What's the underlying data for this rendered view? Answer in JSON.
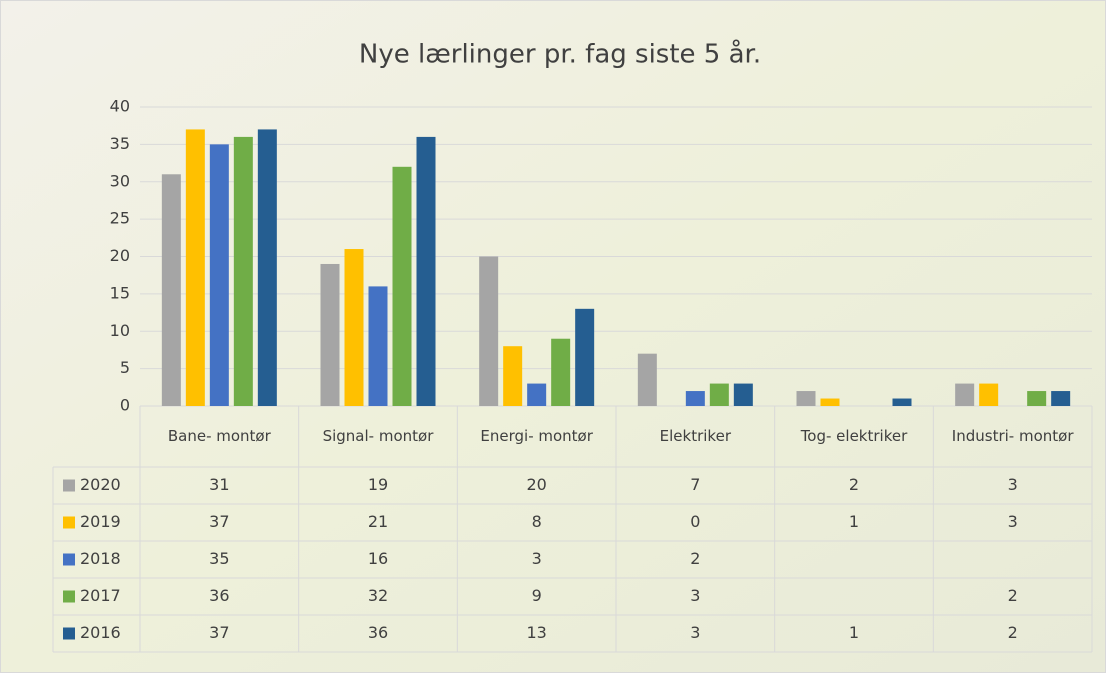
{
  "chart_data": {
    "type": "bar",
    "title": "Nye lærlinger pr. fag siste 5 år.",
    "categories": [
      "Bane- montør",
      "Signal- montør",
      "Energi- montør",
      "Elektriker",
      "Tog- elektriker",
      "Industri- montør"
    ],
    "series": [
      {
        "name": "2020",
        "color": "#a5a5a5",
        "values": [
          31,
          19,
          20,
          7,
          2,
          3
        ]
      },
      {
        "name": "2019",
        "color": "#ffc000",
        "values": [
          37,
          21,
          8,
          0,
          1,
          3
        ]
      },
      {
        "name": "2018",
        "color": "#4472c4",
        "values": [
          35,
          16,
          3,
          2,
          null,
          null
        ]
      },
      {
        "name": "2017",
        "color": "#70ad47",
        "values": [
          36,
          32,
          9,
          3,
          null,
          2
        ]
      },
      {
        "name": "2016",
        "color": "#255e91",
        "values": [
          37,
          36,
          13,
          3,
          1,
          2
        ]
      }
    ],
    "ylim": [
      0,
      40
    ],
    "yticks": [
      0,
      5,
      10,
      15,
      20,
      25,
      30,
      35,
      40
    ],
    "grid": true,
    "data_table": true
  }
}
